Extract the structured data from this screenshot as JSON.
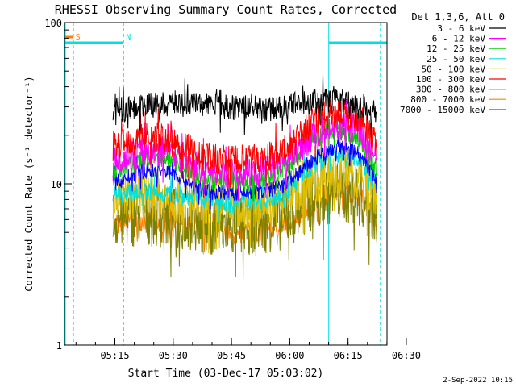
{
  "chart_data": {
    "type": "line",
    "title": "RHESSI Observing Summary Count Rates, Corrected",
    "xlabel": "Start Time (03-Dec-17 05:03:02)",
    "ylabel": "Corrected Count Rate (s⁻¹ detector⁻¹)",
    "yscale": "log",
    "ylim": [
      1,
      100
    ],
    "xlim_minutes": [
      0,
      83
    ],
    "x_tick_labels": [
      "05:15",
      "05:30",
      "05:45",
      "06:00",
      "06:15",
      "06:30"
    ],
    "y_tick_labels": [
      "1",
      "10",
      "100"
    ],
    "legend_title": "Det 1,3,6, Att 0",
    "legend_position": "top-right",
    "x_tick_minutes": [
      12.97,
      27.97,
      42.97,
      57.97,
      72.97,
      87.97
    ],
    "data_start_minute": 12.5,
    "data_end_minute": 80.5,
    "series": [
      {
        "name": "3 - 6 keV",
        "color": "#000000",
        "x_min": [
          12.5,
          30,
          42,
          54,
          62,
          70,
          76,
          80.5
        ],
        "values": [
          29,
          32,
          30,
          29,
          32,
          34,
          31,
          27
        ]
      },
      {
        "name": "6 - 12 keV",
        "color": "#ff00ff",
        "x_min": [
          12.5,
          20,
          27,
          36,
          48,
          56,
          64,
          70,
          76,
          80.5
        ],
        "values": [
          14,
          16,
          16,
          12,
          11.5,
          13,
          20,
          23,
          21,
          14
        ]
      },
      {
        "name": "12 - 25 keV",
        "color": "#00d000",
        "x_min": [
          12.5,
          20,
          27,
          36,
          48,
          56,
          64,
          70,
          76,
          80.5
        ],
        "values": [
          12,
          14,
          14.5,
          10.5,
          10.2,
          12,
          19,
          22,
          19,
          12
        ]
      },
      {
        "name": "25 - 50 keV",
        "color": "#00e0e0",
        "x_min": [
          12.5,
          20,
          30,
          44,
          56,
          64,
          70,
          76,
          80.5
        ],
        "values": [
          8.5,
          9,
          8.5,
          7.5,
          8.5,
          13,
          15.5,
          14,
          10
        ]
      },
      {
        "name": "50 - 100 keV",
        "color": "#e0c000",
        "x_min": [
          12.5,
          20,
          30,
          44,
          56,
          64,
          70,
          76,
          80.5
        ],
        "values": [
          8,
          8.5,
          8,
          7,
          8,
          10.5,
          12,
          11,
          8.5
        ]
      },
      {
        "name": "100 - 300 keV",
        "color": "#ff0000",
        "x_min": [
          12.5,
          20,
          27,
          36,
          48,
          56,
          64,
          70,
          76,
          80.5
        ],
        "values": [
          17,
          20,
          19,
          14.5,
          14,
          15.5,
          24,
          28,
          26,
          17
        ]
      },
      {
        "name": "300 - 800 keV",
        "color": "#0000ff",
        "x_min": [
          12.5,
          20,
          27,
          36,
          48,
          56,
          64,
          70,
          76,
          80.5
        ],
        "values": [
          10,
          12,
          12,
          9,
          8.8,
          9.5,
          14,
          17,
          15.5,
          10.5
        ]
      },
      {
        "name": "800 - 7000 keV",
        "color": "#ff8000",
        "x_min": [
          12.5,
          20,
          30,
          44,
          56,
          64,
          70,
          76,
          80.5
        ],
        "values": [
          5.5,
          6,
          5.5,
          4.8,
          5.5,
          7.5,
          9.5,
          8.5,
          5.5
        ]
      },
      {
        "name": "7000 - 15000 keV",
        "color": "#808000",
        "x_min": [
          12.5,
          20,
          30,
          44,
          56,
          64,
          70,
          76,
          80.5
        ],
        "values": [
          6,
          6.5,
          6,
          5.5,
          6,
          8,
          9,
          8.5,
          6.5
        ]
      }
    ],
    "annotations": [
      {
        "label": "S",
        "color": "#ff8000",
        "x_min": 2.0
      },
      {
        "label": "N",
        "color": "#00e0e0",
        "x_min": 15.0
      }
    ],
    "night_level": 75,
    "night_intervals": [
      [
        0,
        15
      ],
      [
        68,
        83
      ]
    ],
    "markers": [
      {
        "x_min": 0.2,
        "style": "solid",
        "color": "#00e0e0"
      },
      {
        "x_min": 2.3,
        "style": "dashed",
        "color": "#ff8000"
      },
      {
        "x_min": 15.2,
        "style": "dashed",
        "color": "#00e0e0"
      },
      {
        "x_min": 68.0,
        "style": "solid",
        "color": "#00e0e0"
      },
      {
        "x_min": 81.3,
        "style": "dashed",
        "color": "#00e0e0"
      }
    ]
  },
  "footer": {
    "timestamp": "2-Sep-2022 10:15"
  }
}
